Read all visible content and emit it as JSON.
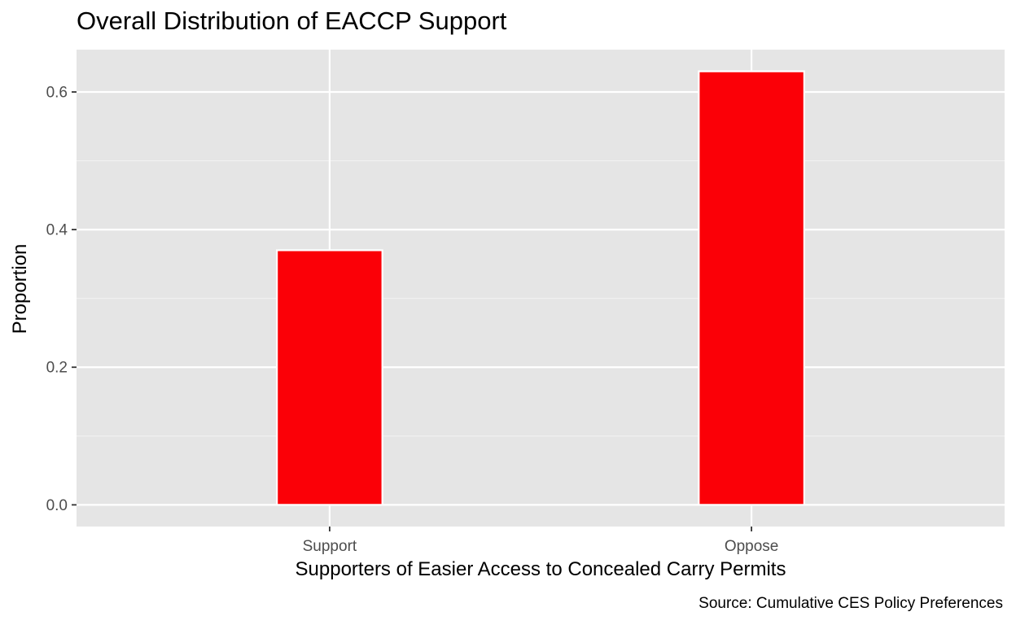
{
  "chart_data": {
    "type": "bar",
    "title": "Overall Distribution of EACCP Support",
    "xlabel": "Supporters of Easier Access to Concealed Carry Permits",
    "ylabel": "Proportion",
    "caption": "Source: Cumulative CES Policy Preferences",
    "categories": [
      "Support",
      "Oppose"
    ],
    "values": [
      0.37,
      0.63
    ],
    "ylim": [
      -0.0315,
      0.6615
    ],
    "yticks": [
      0.0,
      0.2,
      0.4,
      0.6
    ],
    "ytick_labels": [
      "0.0",
      "0.2",
      "0.4",
      "0.6"
    ],
    "grid": true,
    "colors": {
      "bar_fill": "#FB0007",
      "bar_outline": "#FFFFFF",
      "panel_background": "#E5E5E5",
      "grid_major": "#FFFFFF",
      "grid_minor": "#F2F2F2",
      "tick_text": "#4D4D4D"
    }
  }
}
